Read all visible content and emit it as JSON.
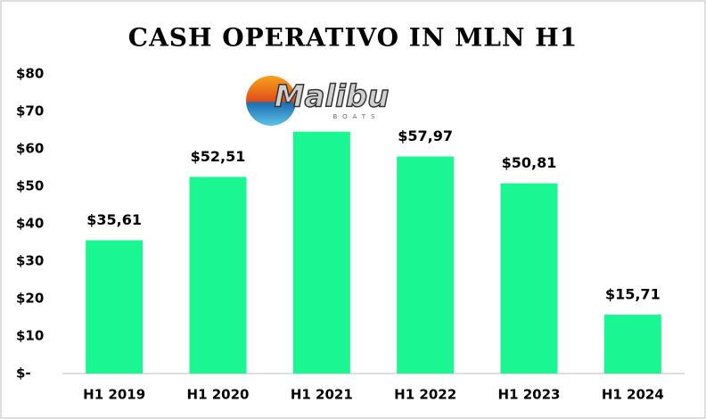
{
  "chart_data": {
    "type": "bar",
    "title": "CASH OPERATIVO IN MLN H1",
    "categories": [
      "H1 2019",
      "H1 2020",
      "H1 2021",
      "H1 2022",
      "H1 2023",
      "H1 2024"
    ],
    "values": [
      35.61,
      52.51,
      64.6,
      57.97,
      50.81,
      15.71
    ],
    "value_labels": [
      "$35,61",
      "$52,51",
      null,
      "$57,97",
      "$50,81",
      "$15,71"
    ],
    "color": "#1af792",
    "ylim": [
      0,
      80
    ],
    "yticks": [
      {
        "value": 0,
        "label": "$-"
      },
      {
        "value": 10,
        "label": "$10"
      },
      {
        "value": 20,
        "label": "$20"
      },
      {
        "value": 30,
        "label": "$30"
      },
      {
        "value": 40,
        "label": "$40"
      },
      {
        "value": 50,
        "label": "$50"
      },
      {
        "value": 60,
        "label": "$60"
      },
      {
        "value": 70,
        "label": "$70"
      },
      {
        "value": 80,
        "label": "$80"
      }
    ],
    "grid": false,
    "annotations": [
      "Malibu",
      "BOATS"
    ]
  }
}
